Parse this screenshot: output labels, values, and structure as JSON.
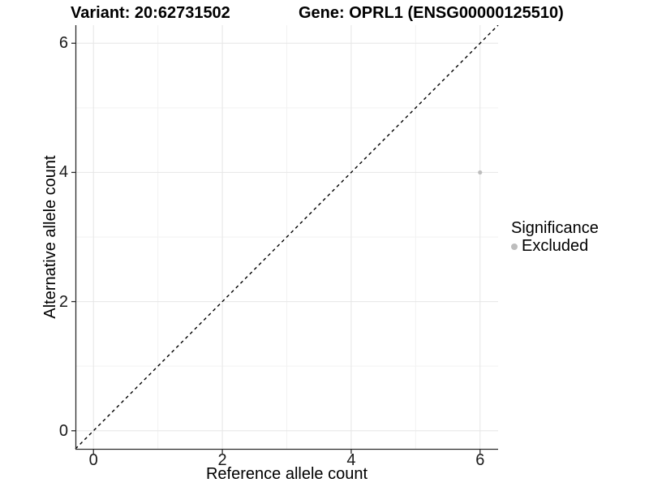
{
  "titles": {
    "variant": "Variant: 20:62731502",
    "gene": "Gene: OPRL1 (ENSG00000125510)"
  },
  "chart_data": {
    "type": "scatter",
    "title_left": "Variant: 20:62731502",
    "title_right": "Gene: OPRL1 (ENSG00000125510)",
    "xlabel": "Reference allele count",
    "ylabel": "Alternative allele count",
    "xlim": [
      -0.28,
      6.28
    ],
    "ylim": [
      -0.28,
      6.28
    ],
    "xticks": [
      0,
      2,
      4,
      6
    ],
    "yticks": [
      0,
      2,
      4,
      6
    ],
    "xticks_minor": [
      1,
      3,
      5
    ],
    "yticks_minor": [
      1,
      3,
      5
    ],
    "grid": true,
    "series": [
      {
        "name": "Excluded",
        "points": [
          {
            "x": 6,
            "y": 4
          }
        ]
      }
    ],
    "reference_line": {
      "type": "identity-diagonal",
      "style": "dashed",
      "from": [
        -0.28,
        -0.28
      ],
      "to": [
        6.28,
        6.28
      ]
    },
    "legend": {
      "title": "Significance",
      "position": "right",
      "items": [
        {
          "label": "Excluded",
          "color": "#bdbdbd"
        }
      ]
    }
  },
  "colors": {
    "point": "#bdbdbd",
    "grid_major": "#e6e6e6",
    "grid_minor": "#f2f2f2",
    "axis_line": "#2b2b2b",
    "dashed_line": "#000000",
    "background": "#ffffff"
  }
}
